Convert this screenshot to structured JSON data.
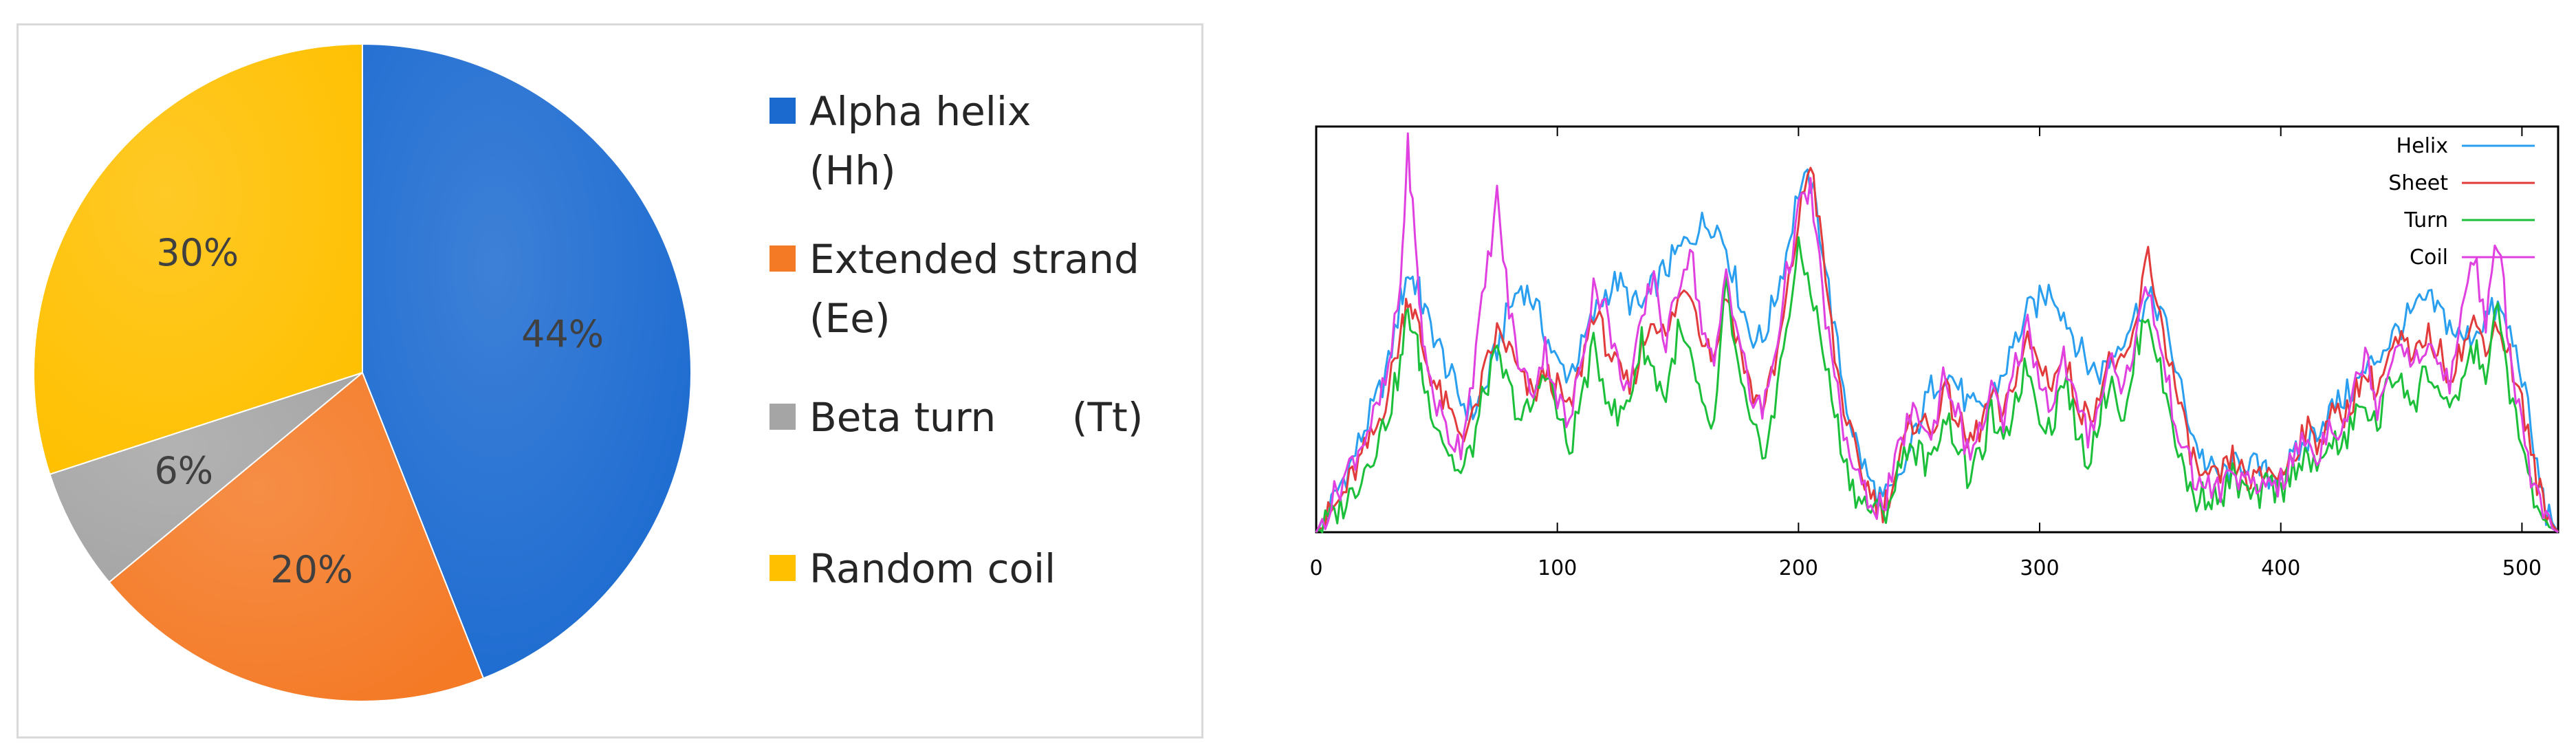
{
  "chart_data": [
    {
      "type": "pie",
      "slices": [
        {
          "label": "Alpha helix (Hh)",
          "label_lines": [
            "Alpha helix",
            "(Hh)"
          ],
          "value": 44,
          "display": "44%",
          "color": "#1b6ad0"
        },
        {
          "label": "Extended strand (Ee)",
          "label_lines": [
            "Extended strand",
            "(Ee)"
          ],
          "value": 20,
          "display": "20%",
          "color": "#f47a26"
        },
        {
          "label": "Beta turn (Tt)",
          "label_lines": [
            "Beta turn      (Tt)"
          ],
          "value": 6,
          "display": "6%",
          "color": "#a5a5a5"
        },
        {
          "label": "Random coil",
          "label_lines": [
            "Random coil"
          ],
          "value": 30,
          "display": "30%",
          "color": "#ffc000"
        }
      ],
      "legend_position": "right"
    },
    {
      "type": "line",
      "xlim": [
        0,
        515
      ],
      "xticks": [
        0,
        100,
        200,
        300,
        400,
        500
      ],
      "yticks_shown": false,
      "legend_position": "top-right",
      "series": [
        {
          "name": "Helix",
          "color": "#2a9ff0",
          "x": [
            0,
            5,
            10,
            15,
            20,
            25,
            30,
            35,
            38,
            42,
            45,
            50,
            55,
            60,
            65,
            70,
            75,
            80,
            85,
            90,
            95,
            100,
            105,
            110,
            115,
            120,
            125,
            130,
            135,
            140,
            145,
            150,
            155,
            160,
            165,
            170,
            175,
            180,
            185,
            190,
            195,
            200,
            205,
            210,
            215,
            220,
            225,
            230,
            235,
            240,
            245,
            250,
            255,
            260,
            265,
            270,
            275,
            280,
            285,
            290,
            295,
            300,
            305,
            310,
            315,
            320,
            325,
            330,
            335,
            340,
            345,
            350,
            355,
            360,
            365,
            370,
            375,
            380,
            385,
            390,
            395,
            400,
            405,
            410,
            415,
            420,
            425,
            430,
            435,
            440,
            445,
            450,
            455,
            460,
            465,
            470,
            475,
            480,
            485,
            490,
            495,
            500,
            505,
            510,
            515
          ],
          "y": [
            0,
            0.05,
            0.12,
            0.18,
            0.26,
            0.33,
            0.42,
            0.58,
            0.65,
            0.62,
            0.55,
            0.48,
            0.4,
            0.33,
            0.3,
            0.36,
            0.46,
            0.56,
            0.62,
            0.58,
            0.5,
            0.42,
            0.4,
            0.46,
            0.54,
            0.6,
            0.63,
            0.58,
            0.56,
            0.62,
            0.66,
            0.7,
            0.74,
            0.77,
            0.78,
            0.72,
            0.6,
            0.5,
            0.48,
            0.58,
            0.7,
            0.86,
            0.88,
            0.72,
            0.5,
            0.32,
            0.2,
            0.12,
            0.08,
            0.1,
            0.18,
            0.28,
            0.36,
            0.4,
            0.38,
            0.32,
            0.3,
            0.34,
            0.4,
            0.48,
            0.55,
            0.58,
            0.61,
            0.55,
            0.48,
            0.42,
            0.4,
            0.44,
            0.5,
            0.55,
            0.58,
            0.56,
            0.45,
            0.32,
            0.22,
            0.16,
            0.14,
            0.16,
            0.18,
            0.16,
            0.14,
            0.15,
            0.18,
            0.22,
            0.26,
            0.3,
            0.33,
            0.36,
            0.4,
            0.44,
            0.48,
            0.52,
            0.55,
            0.58,
            0.56,
            0.52,
            0.48,
            0.5,
            0.54,
            0.56,
            0.5,
            0.4,
            0.2,
            0.05,
            0
          ]
        },
        {
          "name": "Sheet",
          "color": "#e23b3b",
          "x": [
            0,
            5,
            10,
            15,
            20,
            25,
            30,
            35,
            38,
            42,
            45,
            50,
            55,
            60,
            65,
            70,
            75,
            80,
            85,
            90,
            95,
            100,
            105,
            110,
            115,
            120,
            125,
            130,
            135,
            140,
            145,
            150,
            155,
            160,
            165,
            170,
            175,
            180,
            185,
            190,
            195,
            200,
            205,
            210,
            215,
            220,
            225,
            230,
            235,
            240,
            245,
            250,
            255,
            260,
            265,
            270,
            275,
            280,
            285,
            290,
            295,
            300,
            305,
            310,
            315,
            320,
            325,
            330,
            335,
            340,
            345,
            350,
            355,
            360,
            365,
            370,
            375,
            380,
            385,
            390,
            395,
            400,
            405,
            410,
            415,
            420,
            425,
            430,
            435,
            440,
            445,
            450,
            455,
            460,
            465,
            470,
            475,
            480,
            485,
            490,
            495,
            500,
            505,
            510,
            515
          ],
          "y": [
            0,
            0.04,
            0.08,
            0.14,
            0.2,
            0.26,
            0.36,
            0.5,
            0.6,
            0.52,
            0.44,
            0.36,
            0.3,
            0.25,
            0.28,
            0.4,
            0.5,
            0.46,
            0.38,
            0.34,
            0.4,
            0.36,
            0.3,
            0.42,
            0.56,
            0.48,
            0.4,
            0.36,
            0.46,
            0.55,
            0.48,
            0.58,
            0.62,
            0.5,
            0.44,
            0.6,
            0.48,
            0.36,
            0.32,
            0.4,
            0.58,
            0.78,
            0.94,
            0.7,
            0.44,
            0.28,
            0.16,
            0.1,
            0.06,
            0.14,
            0.24,
            0.3,
            0.24,
            0.36,
            0.3,
            0.22,
            0.26,
            0.34,
            0.28,
            0.4,
            0.48,
            0.42,
            0.38,
            0.44,
            0.34,
            0.28,
            0.36,
            0.44,
            0.4,
            0.52,
            0.7,
            0.54,
            0.4,
            0.26,
            0.16,
            0.12,
            0.14,
            0.18,
            0.14,
            0.12,
            0.16,
            0.14,
            0.2,
            0.26,
            0.22,
            0.3,
            0.28,
            0.34,
            0.4,
            0.36,
            0.44,
            0.48,
            0.42,
            0.5,
            0.46,
            0.4,
            0.46,
            0.52,
            0.48,
            0.52,
            0.44,
            0.32,
            0.16,
            0.04,
            0
          ]
        },
        {
          "name": "Turn",
          "color": "#1cbf3a",
          "x": [
            0,
            5,
            10,
            15,
            20,
            25,
            30,
            35,
            38,
            42,
            45,
            50,
            55,
            60,
            65,
            70,
            75,
            80,
            85,
            90,
            95,
            100,
            105,
            110,
            115,
            120,
            125,
            130,
            135,
            140,
            145,
            150,
            155,
            160,
            165,
            170,
            175,
            180,
            185,
            190,
            195,
            200,
            205,
            210,
            215,
            220,
            225,
            230,
            235,
            240,
            245,
            250,
            255,
            260,
            265,
            270,
            275,
            280,
            285,
            290,
            295,
            300,
            305,
            310,
            315,
            320,
            325,
            330,
            335,
            340,
            345,
            350,
            355,
            360,
            365,
            370,
            375,
            380,
            385,
            390,
            395,
            400,
            405,
            410,
            415,
            420,
            425,
            430,
            435,
            440,
            445,
            450,
            455,
            460,
            465,
            470,
            475,
            480,
            485,
            490,
            495,
            500,
            505,
            510,
            515
          ],
          "y": [
            0,
            0.03,
            0.06,
            0.1,
            0.16,
            0.22,
            0.3,
            0.42,
            0.56,
            0.46,
            0.36,
            0.28,
            0.2,
            0.14,
            0.22,
            0.36,
            0.44,
            0.36,
            0.28,
            0.32,
            0.42,
            0.3,
            0.2,
            0.34,
            0.46,
            0.36,
            0.28,
            0.34,
            0.48,
            0.4,
            0.34,
            0.5,
            0.44,
            0.3,
            0.26,
            0.62,
            0.4,
            0.26,
            0.2,
            0.3,
            0.52,
            0.7,
            0.62,
            0.46,
            0.3,
            0.16,
            0.08,
            0.06,
            0.04,
            0.12,
            0.22,
            0.2,
            0.16,
            0.3,
            0.24,
            0.14,
            0.18,
            0.3,
            0.2,
            0.34,
            0.42,
            0.3,
            0.26,
            0.4,
            0.26,
            0.18,
            0.3,
            0.4,
            0.26,
            0.46,
            0.56,
            0.4,
            0.28,
            0.14,
            0.08,
            0.1,
            0.08,
            0.14,
            0.1,
            0.08,
            0.12,
            0.1,
            0.16,
            0.2,
            0.14,
            0.24,
            0.2,
            0.28,
            0.32,
            0.26,
            0.38,
            0.4,
            0.3,
            0.42,
            0.36,
            0.28,
            0.38,
            0.46,
            0.4,
            0.56,
            0.36,
            0.2,
            0.08,
            0.02,
            0
          ]
        },
        {
          "name": "Coil",
          "color": "#e040e0",
          "x": [
            0,
            5,
            10,
            15,
            20,
            25,
            30,
            35,
            38,
            42,
            45,
            50,
            55,
            60,
            65,
            70,
            75,
            80,
            85,
            90,
            95,
            100,
            105,
            110,
            115,
            120,
            125,
            130,
            135,
            140,
            145,
            150,
            155,
            160,
            165,
            170,
            175,
            180,
            185,
            190,
            195,
            200,
            205,
            210,
            215,
            220,
            225,
            230,
            235,
            240,
            245,
            250,
            255,
            260,
            265,
            270,
            275,
            280,
            285,
            290,
            295,
            300,
            305,
            310,
            315,
            320,
            325,
            330,
            335,
            340,
            345,
            350,
            355,
            360,
            365,
            370,
            375,
            380,
            385,
            390,
            395,
            400,
            405,
            410,
            415,
            420,
            425,
            430,
            435,
            440,
            445,
            450,
            455,
            460,
            465,
            470,
            475,
            480,
            485,
            490,
            495,
            500,
            505,
            510,
            515
          ],
          "y": [
            0,
            0.06,
            0.12,
            0.18,
            0.24,
            0.3,
            0.4,
            0.62,
            0.98,
            0.64,
            0.44,
            0.32,
            0.24,
            0.22,
            0.4,
            0.62,
            0.84,
            0.56,
            0.4,
            0.36,
            0.46,
            0.34,
            0.26,
            0.44,
            0.62,
            0.56,
            0.42,
            0.36,
            0.52,
            0.66,
            0.46,
            0.62,
            0.72,
            0.52,
            0.4,
            0.66,
            0.5,
            0.34,
            0.3,
            0.44,
            0.64,
            0.8,
            0.86,
            0.6,
            0.38,
            0.22,
            0.12,
            0.08,
            0.06,
            0.16,
            0.28,
            0.3,
            0.22,
            0.4,
            0.32,
            0.2,
            0.24,
            0.36,
            0.26,
            0.42,
            0.52,
            0.38,
            0.32,
            0.44,
            0.32,
            0.24,
            0.34,
            0.44,
            0.36,
            0.5,
            0.62,
            0.46,
            0.32,
            0.2,
            0.12,
            0.12,
            0.1,
            0.16,
            0.12,
            0.1,
            0.14,
            0.12,
            0.18,
            0.24,
            0.18,
            0.28,
            0.26,
            0.34,
            0.46,
            0.32,
            0.42,
            0.5,
            0.4,
            0.48,
            0.42,
            0.36,
            0.56,
            0.7,
            0.52,
            0.74,
            0.46,
            0.26,
            0.1,
            0.02,
            0
          ]
        }
      ]
    }
  ]
}
